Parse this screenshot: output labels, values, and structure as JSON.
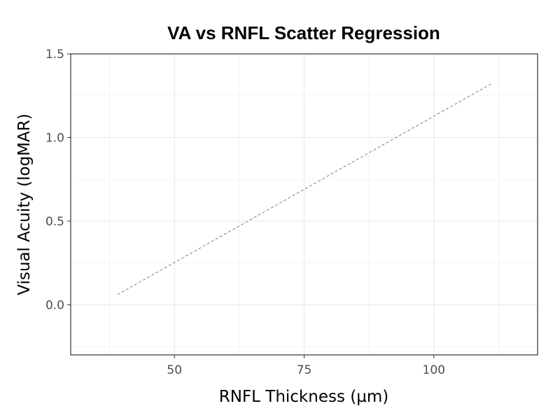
{
  "chart_data": {
    "type": "scatter",
    "title": "VA vs RNFL Scatter Regression",
    "xlabel": "RNFL Thickness (µm)",
    "ylabel": "Visual Acuity (logMAR)",
    "xlim": [
      30,
      120
    ],
    "ylim": [
      -0.3,
      1.5
    ],
    "x_ticks": [
      50,
      75,
      100
    ],
    "x_tick_labels": [
      "50",
      "75",
      "100"
    ],
    "y_ticks": [
      0.0,
      0.5,
      1.0,
      1.5
    ],
    "y_tick_labels": [
      "0.0",
      "0.5",
      "1.0",
      "1.5"
    ],
    "x_minor_ticks": [
      37.5,
      62.5,
      87.5,
      112.5
    ],
    "y_minor_ticks": [
      -0.25,
      0.25,
      0.75,
      1.25
    ],
    "grid": true,
    "points": [],
    "regression_line": {
      "x": [
        39,
        111
      ],
      "y": [
        0.06,
        1.32
      ],
      "style": "dashed",
      "color": "#7f7f7f"
    }
  }
}
